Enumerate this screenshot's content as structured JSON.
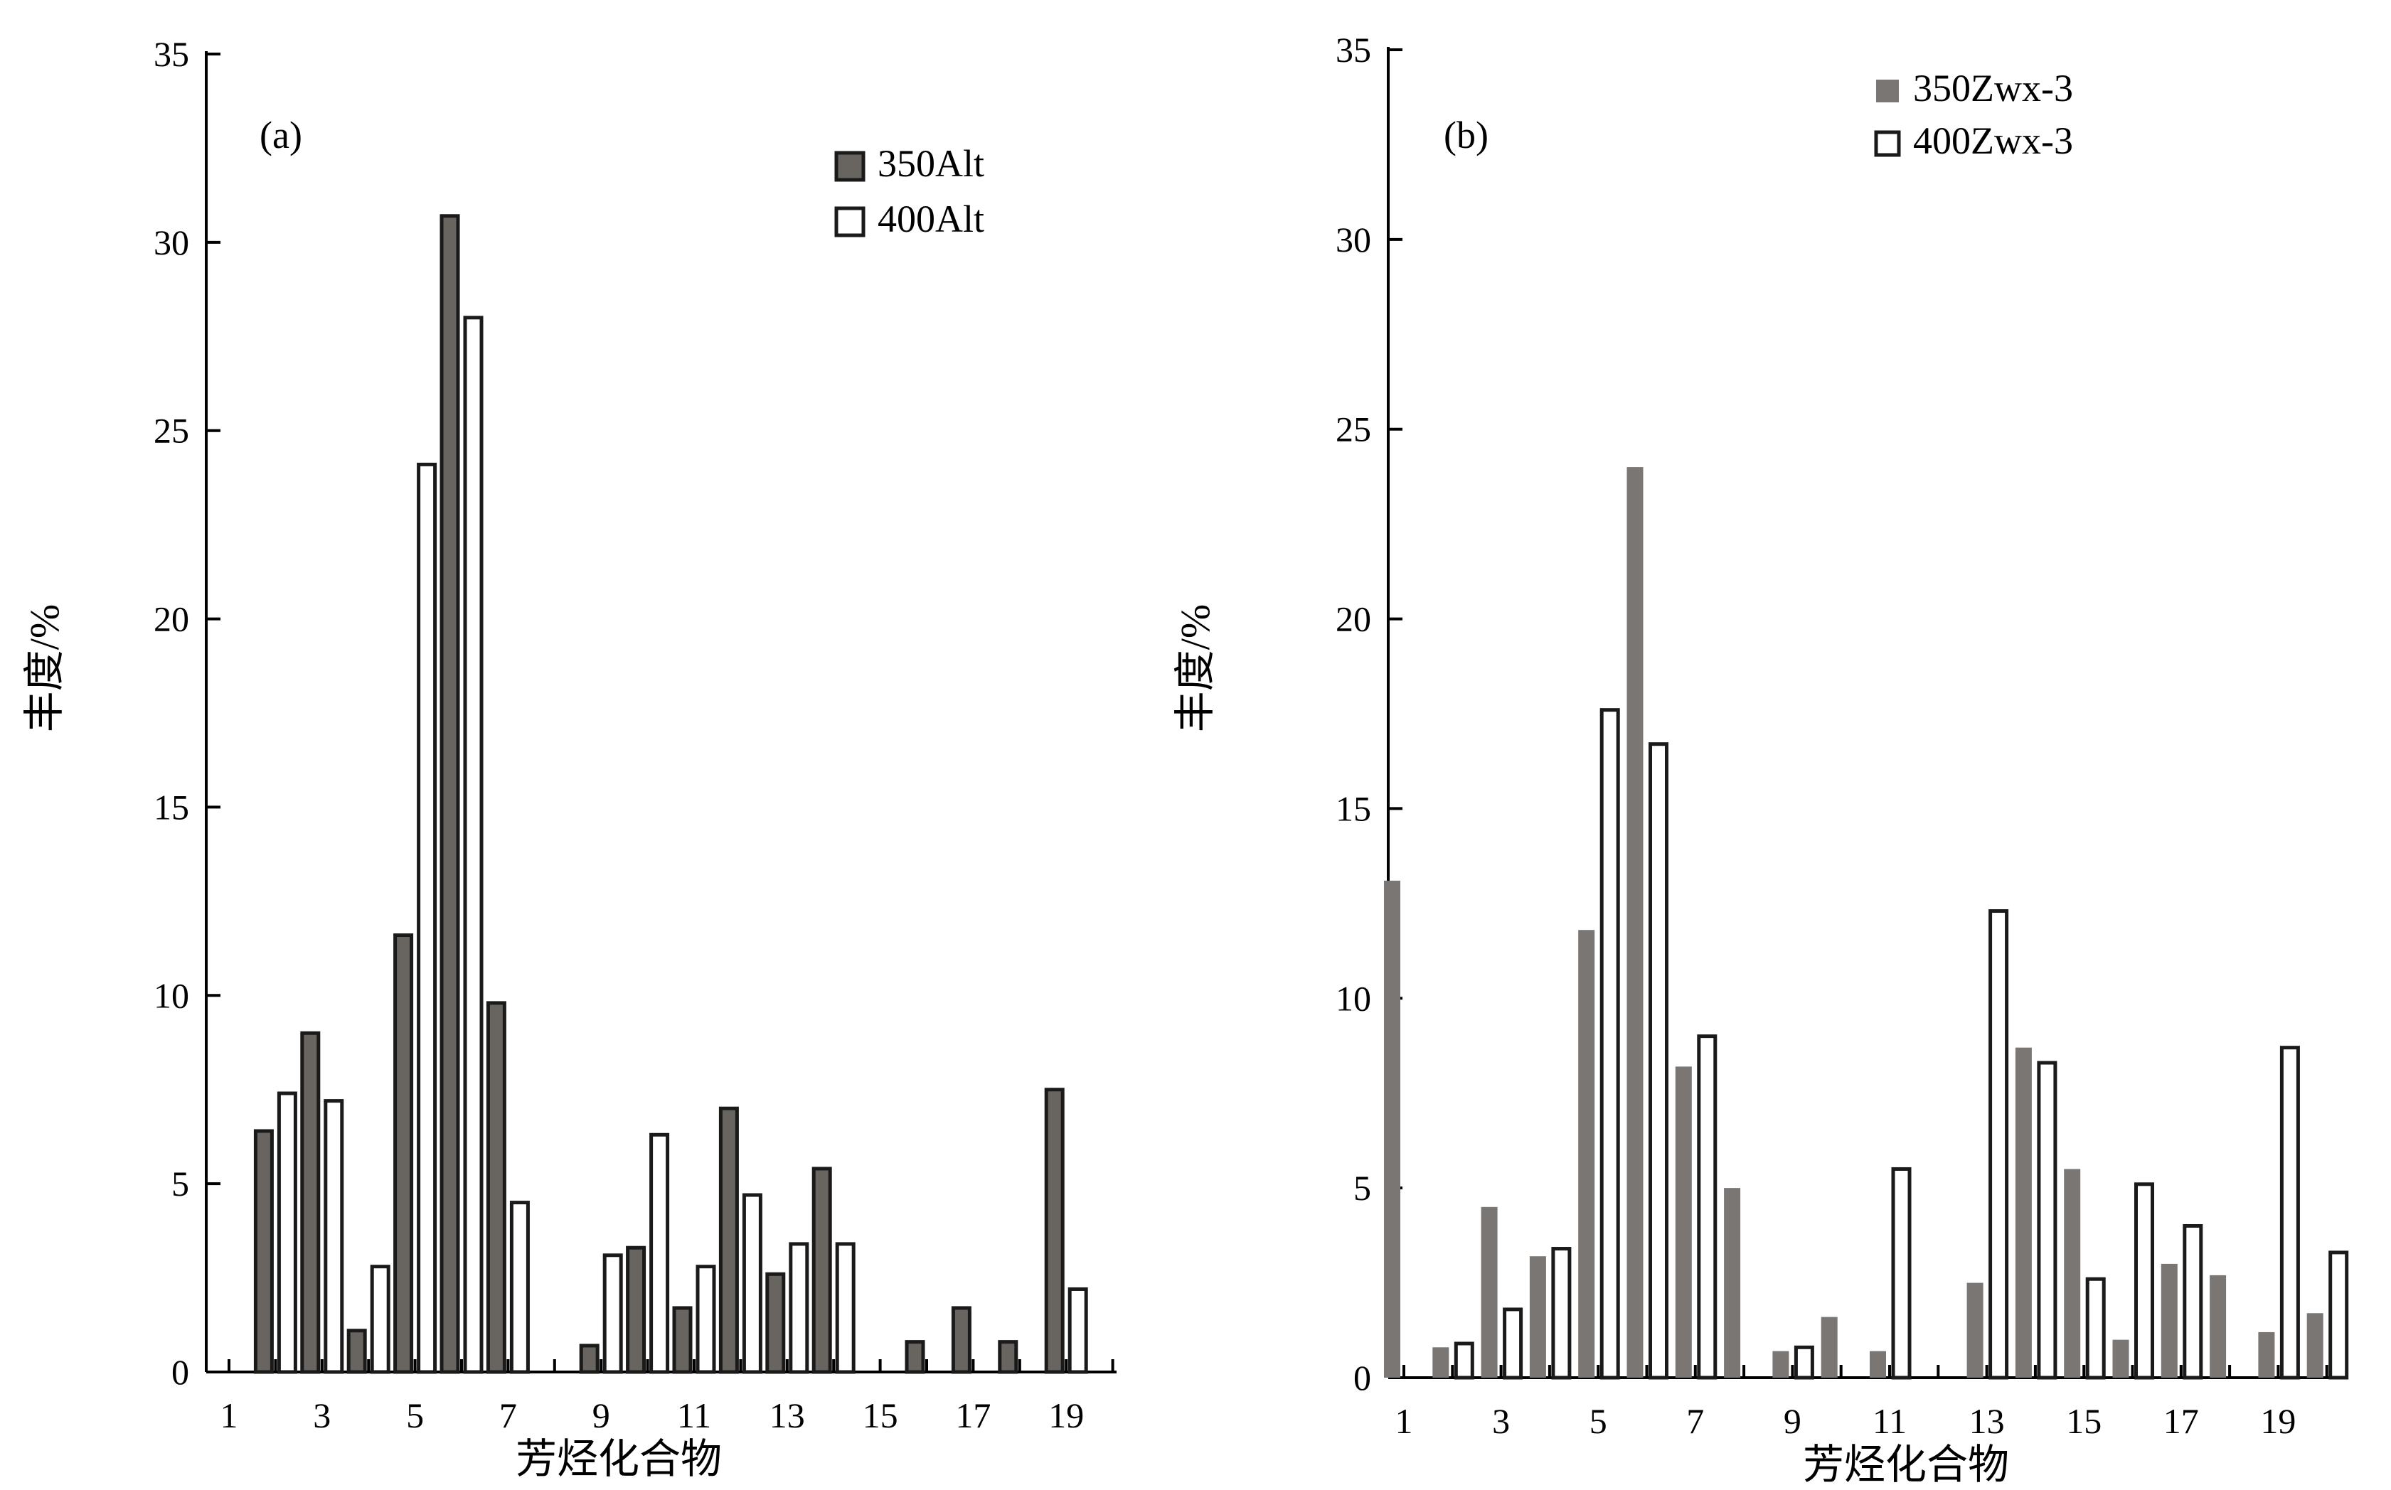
{
  "chart_data": [
    {
      "type": "bar",
      "panel_label": "(a)",
      "xlabel": "芳烃化合物",
      "ylabel": "丰度/%",
      "ylim": [
        0,
        35
      ],
      "yticks": [
        0,
        5,
        10,
        15,
        20,
        25,
        30,
        35
      ],
      "xlim": [
        0.5,
        20.5
      ],
      "xticks": [
        1,
        3,
        5,
        7,
        9,
        11,
        13,
        15,
        17,
        19
      ],
      "categories": [
        1,
        2,
        3,
        4,
        5,
        6,
        7,
        8,
        9,
        10,
        11,
        12,
        13,
        14,
        15,
        16,
        17,
        18,
        19,
        20
      ],
      "legend_position": "top-right",
      "series": [
        {
          "name": "350Alt",
          "fill": "#686460",
          "stroke": "#1a1a1a",
          "values": [
            null,
            6.4,
            9.0,
            1.1,
            11.6,
            30.7,
            9.8,
            null,
            0.7,
            3.3,
            1.7,
            7.0,
            2.6,
            5.4,
            null,
            0.8,
            1.7,
            0.8,
            7.5,
            null
          ]
        },
        {
          "name": "400Alt",
          "fill": "#ffffff",
          "stroke": "#1a1a1a",
          "values": [
            null,
            7.4,
            7.2,
            2.8,
            24.1,
            28.0,
            4.5,
            null,
            3.1,
            6.3,
            2.8,
            4.7,
            3.4,
            3.4,
            null,
            null,
            null,
            null,
            2.2,
            null
          ]
        }
      ]
    },
    {
      "type": "bar",
      "panel_label": "(b)",
      "xlabel": "芳烃化合物",
      "ylabel": "丰度/%",
      "ylim": [
        0,
        35
      ],
      "yticks": [
        0,
        5,
        10,
        15,
        20,
        25,
        30,
        35
      ],
      "xlim": [
        0.5,
        20.5
      ],
      "xticks": [
        1,
        3,
        5,
        7,
        9,
        11,
        13,
        15,
        17,
        19
      ],
      "categories": [
        1,
        2,
        3,
        4,
        5,
        6,
        7,
        8,
        9,
        10,
        11,
        12,
        13,
        14,
        15,
        16,
        17,
        18,
        19,
        20
      ],
      "legend_position": "top-right",
      "series": [
        {
          "name": "350Zwx-3",
          "fill": "#7a7674",
          "stroke": "none",
          "values": [
            13.1,
            0.8,
            4.5,
            3.2,
            11.8,
            24.0,
            8.2,
            5.0,
            0.7,
            1.6,
            0.7,
            null,
            2.5,
            8.7,
            5.5,
            1.0,
            3.0,
            2.7,
            1.2,
            1.7
          ]
        },
        {
          "name": "400Zwx-3",
          "fill": "#ffffff",
          "stroke": "#1a1a1a",
          "values": [
            null,
            0.9,
            1.8,
            3.4,
            17.6,
            16.7,
            9.0,
            null,
            0.8,
            null,
            5.5,
            null,
            12.3,
            8.3,
            2.6,
            5.1,
            4.0,
            null,
            8.7,
            3.3
          ]
        }
      ]
    }
  ]
}
